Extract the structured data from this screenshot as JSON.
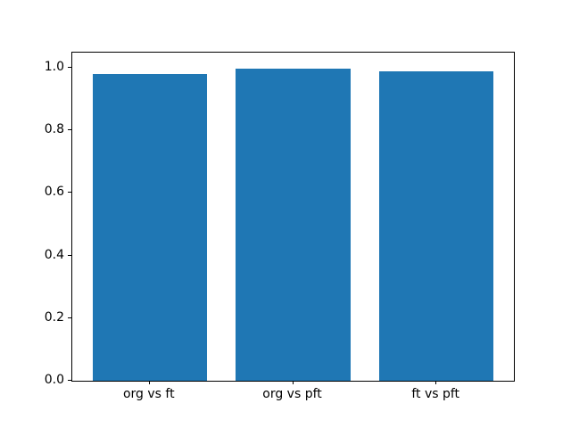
{
  "figure": {
    "background": "#ffffff",
    "bar_color": "#1f77b4",
    "axis_color": "#000000",
    "text_color": "#000000"
  },
  "chart_data": {
    "type": "bar",
    "title": "",
    "xlabel": "",
    "ylabel": "",
    "categories": [
      "org vs ft",
      "org vs pft",
      "ft vs pft"
    ],
    "values": [
      0.979,
      0.998,
      0.987
    ],
    "bar_width_fraction": 0.8,
    "xlim": [
      -0.54,
      2.54
    ],
    "ylim": [
      0,
      1.048
    ],
    "yticks": [
      0.0,
      0.2,
      0.4,
      0.6,
      0.8,
      1.0
    ],
    "ytick_labels": [
      "0.0",
      "0.2",
      "0.4",
      "0.6",
      "0.8",
      "1.0"
    ],
    "grid": false,
    "legend": null
  }
}
